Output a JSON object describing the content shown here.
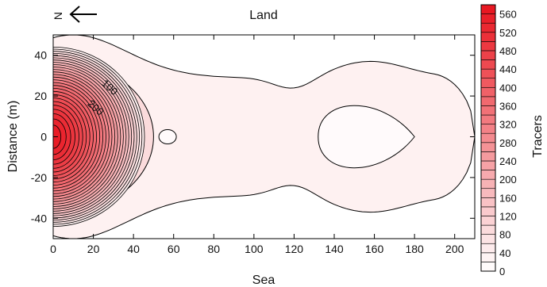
{
  "chart_data": {
    "type": "heatmap",
    "subtype": "filled-contour",
    "title": "Land",
    "xlabel": "Sea",
    "ylabel": "Distance (m)",
    "north_arrow_label": "N",
    "north_arrow_icon": "arrow-left-icon",
    "xlim": [
      0,
      210
    ],
    "ylim": [
      -50,
      50
    ],
    "x_ticks": [
      0,
      20,
      40,
      60,
      80,
      100,
      120,
      140,
      160,
      180,
      200
    ],
    "y_ticks": [
      -40,
      -20,
      0,
      20,
      40
    ],
    "colorbar": {
      "label": "Tracers",
      "min": 0,
      "max": 580,
      "step": 20,
      "tick_labels": [
        0,
        40,
        80,
        120,
        160,
        200,
        240,
        280,
        320,
        360,
        400,
        440,
        480,
        520,
        560
      ],
      "color_low": "#ffffff",
      "color_high": "#e8141e"
    },
    "contour_labels": [
      {
        "text": "100",
        "value": 100,
        "x": 27,
        "y": 23
      },
      {
        "text": "200",
        "value": 200,
        "x": 20,
        "y": 13
      }
    ],
    "field": {
      "peak": {
        "x": 0,
        "y": 0,
        "value": 580
      },
      "ridge": {
        "x_center": 22,
        "half_width_x": 28,
        "amplitude": 90
      },
      "background_level": 35,
      "hot_spots": [
        {
          "x": 57,
          "y": 0,
          "value": 38
        },
        {
          "x": 157,
          "y": 0,
          "value": 38
        }
      ]
    },
    "grid": false
  }
}
